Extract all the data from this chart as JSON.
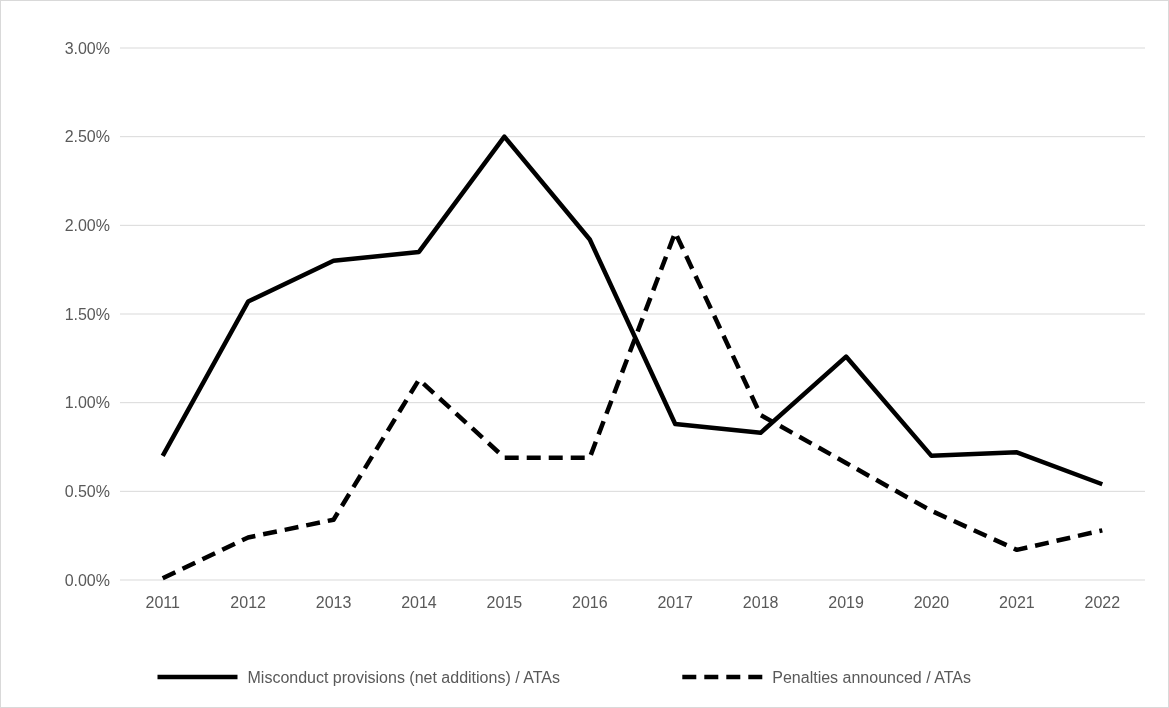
{
  "chart_data": {
    "type": "line",
    "categories": [
      "2011",
      "2012",
      "2013",
      "2014",
      "2015",
      "2016",
      "2017",
      "2018",
      "2019",
      "2020",
      "2021",
      "2022"
    ],
    "series": [
      {
        "name": "Misconduct provisions (net additions) / ATAs",
        "color": "#000000",
        "line_style": "solid",
        "values": [
          0.7,
          1.57,
          1.8,
          1.85,
          2.5,
          1.92,
          0.88,
          0.83,
          1.26,
          0.7,
          0.72,
          0.54
        ]
      },
      {
        "name": "Penalties announced / ATAs",
        "color": "#000000",
        "line_style": "dashed",
        "values": [
          0.01,
          0.24,
          0.34,
          1.13,
          0.69,
          0.69,
          1.96,
          0.93,
          0.66,
          0.39,
          0.17,
          0.28
        ]
      }
    ],
    "ylim": [
      0,
      3
    ],
    "yticks": [
      {
        "value": 0,
        "label": "0.00%"
      },
      {
        "value": 0.5,
        "label": "0.50%"
      },
      {
        "value": 1,
        "label": "1.00%"
      },
      {
        "value": 1.5,
        "label": "1.50%"
      },
      {
        "value": 2,
        "label": "2.00%"
      },
      {
        "value": 2.5,
        "label": "2.50%"
      },
      {
        "value": 3,
        "label": "3.00%"
      }
    ],
    "grid": "y",
    "legend": "bottom",
    "marker": "none"
  }
}
